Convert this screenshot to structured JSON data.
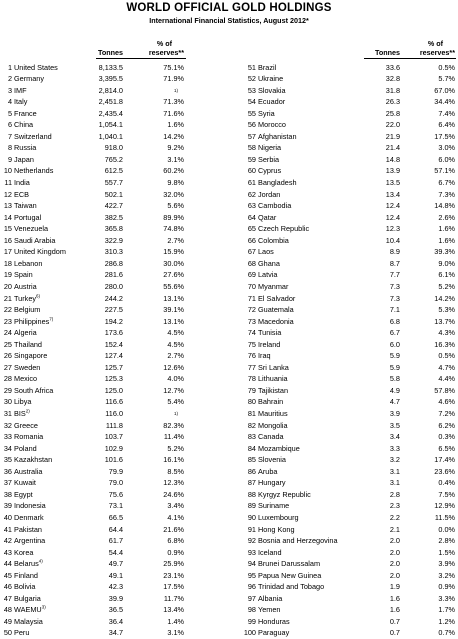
{
  "title": "WORLD OFFICIAL GOLD HOLDINGS",
  "subtitle": "International Financial Statistics, August 2012*",
  "headers": {
    "tonnes": "Tonnes",
    "pct_line1": "% of",
    "pct_line2": "reserves**"
  },
  "left": [
    {
      "rank": "1",
      "country": "United States",
      "tonnes": "8,133.5",
      "pct": "75.1%"
    },
    {
      "rank": "2",
      "country": "Germany",
      "tonnes": "3,395.5",
      "pct": "71.9%"
    },
    {
      "rank": "3",
      "country": "IMF",
      "tonnes": "2,814.0",
      "pct": "",
      "note": "1)"
    },
    {
      "rank": "4",
      "country": "Italy",
      "tonnes": "2,451.8",
      "pct": "71.3%"
    },
    {
      "rank": "5",
      "country": "France",
      "tonnes": "2,435.4",
      "pct": "71.6%"
    },
    {
      "rank": "6",
      "country": "China",
      "tonnes": "1,054.1",
      "pct": "1.6%"
    },
    {
      "rank": "7",
      "country": "Switzerland",
      "tonnes": "1,040.1",
      "pct": "14.2%"
    },
    {
      "rank": "8",
      "country": "Russia",
      "tonnes": "918.0",
      "pct": "9.2%"
    },
    {
      "rank": "9",
      "country": "Japan",
      "tonnes": "765.2",
      "pct": "3.1%"
    },
    {
      "rank": "10",
      "country": "Netherlands",
      "tonnes": "612.5",
      "pct": "60.2%"
    },
    {
      "rank": "11",
      "country": "India",
      "tonnes": "557.7",
      "pct": "9.8%"
    },
    {
      "rank": "12",
      "country": "ECB",
      "tonnes": "502.1",
      "pct": "32.0%"
    },
    {
      "rank": "13",
      "country": "Taiwan",
      "tonnes": "422.7",
      "pct": "5.6%"
    },
    {
      "rank": "14",
      "country": "Portugal",
      "tonnes": "382.5",
      "pct": "89.9%"
    },
    {
      "rank": "15",
      "country": "Venezuela",
      "tonnes": "365.8",
      "pct": "74.8%"
    },
    {
      "rank": "16",
      "country": "Saudi Arabia",
      "tonnes": "322.9",
      "pct": "2.7%"
    },
    {
      "rank": "17",
      "country": "United Kingdom",
      "tonnes": "310.3",
      "pct": "15.9%"
    },
    {
      "rank": "18",
      "country": "Lebanon",
      "tonnes": "286.8",
      "pct": "30.0%"
    },
    {
      "rank": "19",
      "country": "Spain",
      "tonnes": "281.6",
      "pct": "27.6%"
    },
    {
      "rank": "20",
      "country": "Austria",
      "tonnes": "280.0",
      "pct": "55.6%"
    },
    {
      "rank": "21",
      "country": "Turkey",
      "sup": "6)",
      "tonnes": "244.2",
      "pct": "13.1%"
    },
    {
      "rank": "22",
      "country": "Belgium",
      "tonnes": "227.5",
      "pct": "39.1%"
    },
    {
      "rank": "23",
      "country": "Philippines",
      "sup": "7)",
      "tonnes": "194.2",
      "pct": "13.1%"
    },
    {
      "rank": "24",
      "country": "Algeria",
      "tonnes": "173.6",
      "pct": "4.5%"
    },
    {
      "rank": "25",
      "country": "Thailand",
      "tonnes": "152.4",
      "pct": "4.5%"
    },
    {
      "rank": "26",
      "country": "Singapore",
      "tonnes": "127.4",
      "pct": "2.7%"
    },
    {
      "rank": "27",
      "country": "Sweden",
      "tonnes": "125.7",
      "pct": "12.6%"
    },
    {
      "rank": "28",
      "country": "Mexico",
      "tonnes": "125.3",
      "pct": "4.0%"
    },
    {
      "rank": "29",
      "country": "South Africa",
      "tonnes": "125.0",
      "pct": "12.7%"
    },
    {
      "rank": "30",
      "country": "Libya",
      "tonnes": "116.6",
      "pct": "5.4%"
    },
    {
      "rank": "31",
      "country": "BIS",
      "sup": "2)",
      "tonnes": "116.0",
      "pct": "",
      "note": "1)"
    },
    {
      "rank": "32",
      "country": "Greece",
      "tonnes": "111.8",
      "pct": "82.3%"
    },
    {
      "rank": "33",
      "country": "Romania",
      "tonnes": "103.7",
      "pct": "11.4%"
    },
    {
      "rank": "34",
      "country": "Poland",
      "tonnes": "102.9",
      "pct": "5.2%"
    },
    {
      "rank": "35",
      "country": "Kazakhstan",
      "tonnes": "101.6",
      "pct": "16.1%"
    },
    {
      "rank": "36",
      "country": "Australia",
      "tonnes": "79.9",
      "pct": "8.5%"
    },
    {
      "rank": "37",
      "country": "Kuwait",
      "tonnes": "79.0",
      "pct": "12.3%"
    },
    {
      "rank": "38",
      "country": "Egypt",
      "tonnes": "75.6",
      "pct": "24.6%"
    },
    {
      "rank": "39",
      "country": "Indonesia",
      "tonnes": "73.1",
      "pct": "3.4%"
    },
    {
      "rank": "40",
      "country": "Denmark",
      "tonnes": "66.5",
      "pct": "4.1%"
    },
    {
      "rank": "41",
      "country": "Pakistan",
      "tonnes": "64.4",
      "pct": "21.6%"
    },
    {
      "rank": "42",
      "country": "Argentina",
      "tonnes": "61.7",
      "pct": "6.8%"
    },
    {
      "rank": "43",
      "country": "Korea",
      "tonnes": "54.4",
      "pct": "0.9%"
    },
    {
      "rank": "44",
      "country": "Belarus",
      "sup": "4)",
      "tonnes": "49.7",
      "pct": "25.9%"
    },
    {
      "rank": "45",
      "country": "Finland",
      "tonnes": "49.1",
      "pct": "23.1%"
    },
    {
      "rank": "46",
      "country": "Bolivia",
      "tonnes": "42.3",
      "pct": "17.5%"
    },
    {
      "rank": "47",
      "country": "Bulgaria",
      "tonnes": "39.9",
      "pct": "11.7%"
    },
    {
      "rank": "48",
      "country": "WAEMU",
      "sup": "3)",
      "tonnes": "36.5",
      "pct": "13.4%"
    },
    {
      "rank": "49",
      "country": "Malaysia",
      "tonnes": "36.4",
      "pct": "1.4%"
    },
    {
      "rank": "50",
      "country": "Peru",
      "tonnes": "34.7",
      "pct": "3.1%"
    }
  ],
  "right": [
    {
      "rank": "51",
      "country": "Brazil",
      "tonnes": "33.6",
      "pct": "0.5%"
    },
    {
      "rank": "52",
      "country": "Ukraine",
      "tonnes": "32.8",
      "pct": "5.7%"
    },
    {
      "rank": "53",
      "country": "Slovakia",
      "tonnes": "31.8",
      "pct": "67.0%"
    },
    {
      "rank": "54",
      "country": "Ecuador",
      "tonnes": "26.3",
      "pct": "34.4%"
    },
    {
      "rank": "55",
      "country": "Syria",
      "tonnes": "25.8",
      "pct": "7.4%"
    },
    {
      "rank": "56",
      "country": "Morocco",
      "tonnes": "22.0",
      "pct": "6.4%"
    },
    {
      "rank": "57",
      "country": "Afghanistan",
      "tonnes": "21.9",
      "pct": "17.5%"
    },
    {
      "rank": "58",
      "country": "Nigeria",
      "tonnes": "21.4",
      "pct": "3.0%"
    },
    {
      "rank": "59",
      "country": "Serbia",
      "tonnes": "14.8",
      "pct": "6.0%"
    },
    {
      "rank": "60",
      "country": "Cyprus",
      "tonnes": "13.9",
      "pct": "57.1%"
    },
    {
      "rank": "61",
      "country": "Bangladesh",
      "tonnes": "13.5",
      "pct": "6.7%"
    },
    {
      "rank": "62",
      "country": "Jordan",
      "tonnes": "13.4",
      "pct": "7.3%"
    },
    {
      "rank": "63",
      "country": "Cambodia",
      "tonnes": "12.4",
      "pct": "14.8%"
    },
    {
      "rank": "64",
      "country": "Qatar",
      "tonnes": "12.4",
      "pct": "2.6%"
    },
    {
      "rank": "65",
      "country": "Czech Republic",
      "tonnes": "12.3",
      "pct": "1.6%"
    },
    {
      "rank": "66",
      "country": "Colombia",
      "tonnes": "10.4",
      "pct": "1.6%"
    },
    {
      "rank": "67",
      "country": "Laos",
      "tonnes": "8.9",
      "pct": "39.3%"
    },
    {
      "rank": "68",
      "country": "Ghana",
      "tonnes": "8.7",
      "pct": "9.0%"
    },
    {
      "rank": "69",
      "country": "Latvia",
      "tonnes": "7.7",
      "pct": "6.1%"
    },
    {
      "rank": "70",
      "country": "Myanmar",
      "tonnes": "7.3",
      "pct": "5.2%"
    },
    {
      "rank": "71",
      "country": "El Salvador",
      "tonnes": "7.3",
      "pct": "14.2%"
    },
    {
      "rank": "72",
      "country": "Guatemala",
      "tonnes": "7.1",
      "pct": "5.3%"
    },
    {
      "rank": "73",
      "country": "Macedonia",
      "tonnes": "6.8",
      "pct": "13.7%"
    },
    {
      "rank": "74",
      "country": "Tunisia",
      "tonnes": "6.7",
      "pct": "4.3%"
    },
    {
      "rank": "75",
      "country": "Ireland",
      "tonnes": "6.0",
      "pct": "16.3%"
    },
    {
      "rank": "76",
      "country": "Iraq",
      "tonnes": "5.9",
      "pct": "0.5%"
    },
    {
      "rank": "77",
      "country": "Sri Lanka",
      "tonnes": "5.9",
      "pct": "4.7%"
    },
    {
      "rank": "78",
      "country": "Lithuania",
      "tonnes": "5.8",
      "pct": "4.4%"
    },
    {
      "rank": "79",
      "country": "Tajikistan",
      "tonnes": "4.9",
      "pct": "57.8%"
    },
    {
      "rank": "80",
      "country": "Bahrain",
      "tonnes": "4.7",
      "pct": "4.6%"
    },
    {
      "rank": "81",
      "country": "Mauritius",
      "tonnes": "3.9",
      "pct": "7.2%"
    },
    {
      "rank": "82",
      "country": "Mongolia",
      "tonnes": "3.5",
      "pct": "6.2%"
    },
    {
      "rank": "83",
      "country": "Canada",
      "tonnes": "3.4",
      "pct": "0.3%"
    },
    {
      "rank": "84",
      "country": "Mozambique",
      "tonnes": "3.3",
      "pct": "6.5%"
    },
    {
      "rank": "85",
      "country": "Slovenia",
      "tonnes": "3.2",
      "pct": "17.4%"
    },
    {
      "rank": "86",
      "country": "Aruba",
      "tonnes": "3.1",
      "pct": "23.6%"
    },
    {
      "rank": "87",
      "country": "Hungary",
      "tonnes": "3.1",
      "pct": "0.4%"
    },
    {
      "rank": "88",
      "country": "Kyrgyz Republic",
      "tonnes": "2.8",
      "pct": "7.5%"
    },
    {
      "rank": "89",
      "country": "Suriname",
      "tonnes": "2.3",
      "pct": "12.9%"
    },
    {
      "rank": "90",
      "country": "Luxembourg",
      "tonnes": "2.2",
      "pct": "11.5%"
    },
    {
      "rank": "91",
      "country": "Hong Kong",
      "tonnes": "2.1",
      "pct": "0.0%"
    },
    {
      "rank": "92",
      "country": "Bosnia and Herzegovina",
      "tonnes": "2.0",
      "pct": "2.8%"
    },
    {
      "rank": "93",
      "country": "Iceland",
      "tonnes": "2.0",
      "pct": "1.5%"
    },
    {
      "rank": "94",
      "country": "Brunei Darussalam",
      "tonnes": "2.0",
      "pct": "3.9%"
    },
    {
      "rank": "95",
      "country": "Papua New Guinea",
      "tonnes": "2.0",
      "pct": "3.2%"
    },
    {
      "rank": "96",
      "country": "Trinidad and Tobago",
      "tonnes": "1.9",
      "pct": "0.9%"
    },
    {
      "rank": "97",
      "country": "Albania",
      "tonnes": "1.6",
      "pct": "3.3%"
    },
    {
      "rank": "98",
      "country": "Yemen",
      "tonnes": "1.6",
      "pct": "1.7%"
    },
    {
      "rank": "99",
      "country": "Honduras",
      "tonnes": "0.7",
      "pct": "1.2%"
    },
    {
      "rank": "100",
      "country": "Paraguay",
      "tonnes": "0.7",
      "pct": "0.7%"
    }
  ]
}
